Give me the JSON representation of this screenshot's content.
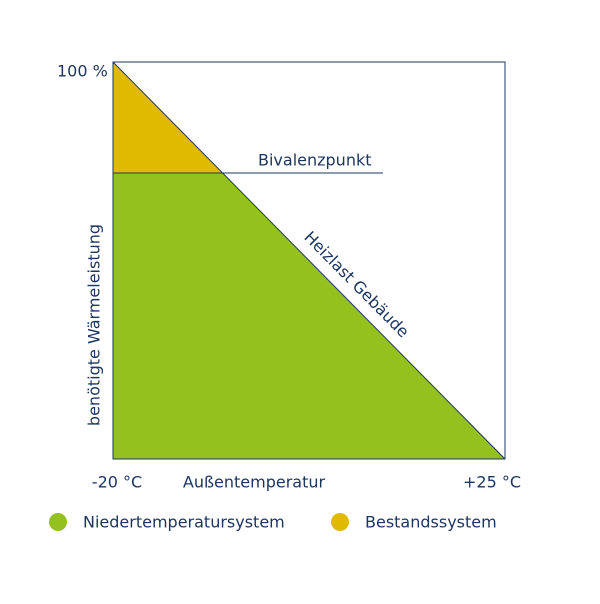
{
  "axis": {
    "y_label": "benötigte Wärmeleistung",
    "y_max_label": "100 %",
    "x_label": "Außentemperatur",
    "x_min_label": "-20 °C",
    "x_max_label": "+25 °C"
  },
  "annotations": {
    "bivalence_point": "Bivalenzpunkt",
    "heat_load": "Heizlast Gebäude"
  },
  "legend": [
    {
      "label": "Niedertemperatursystem"
    },
    {
      "label": "Bestandssystem"
    }
  ]
}
